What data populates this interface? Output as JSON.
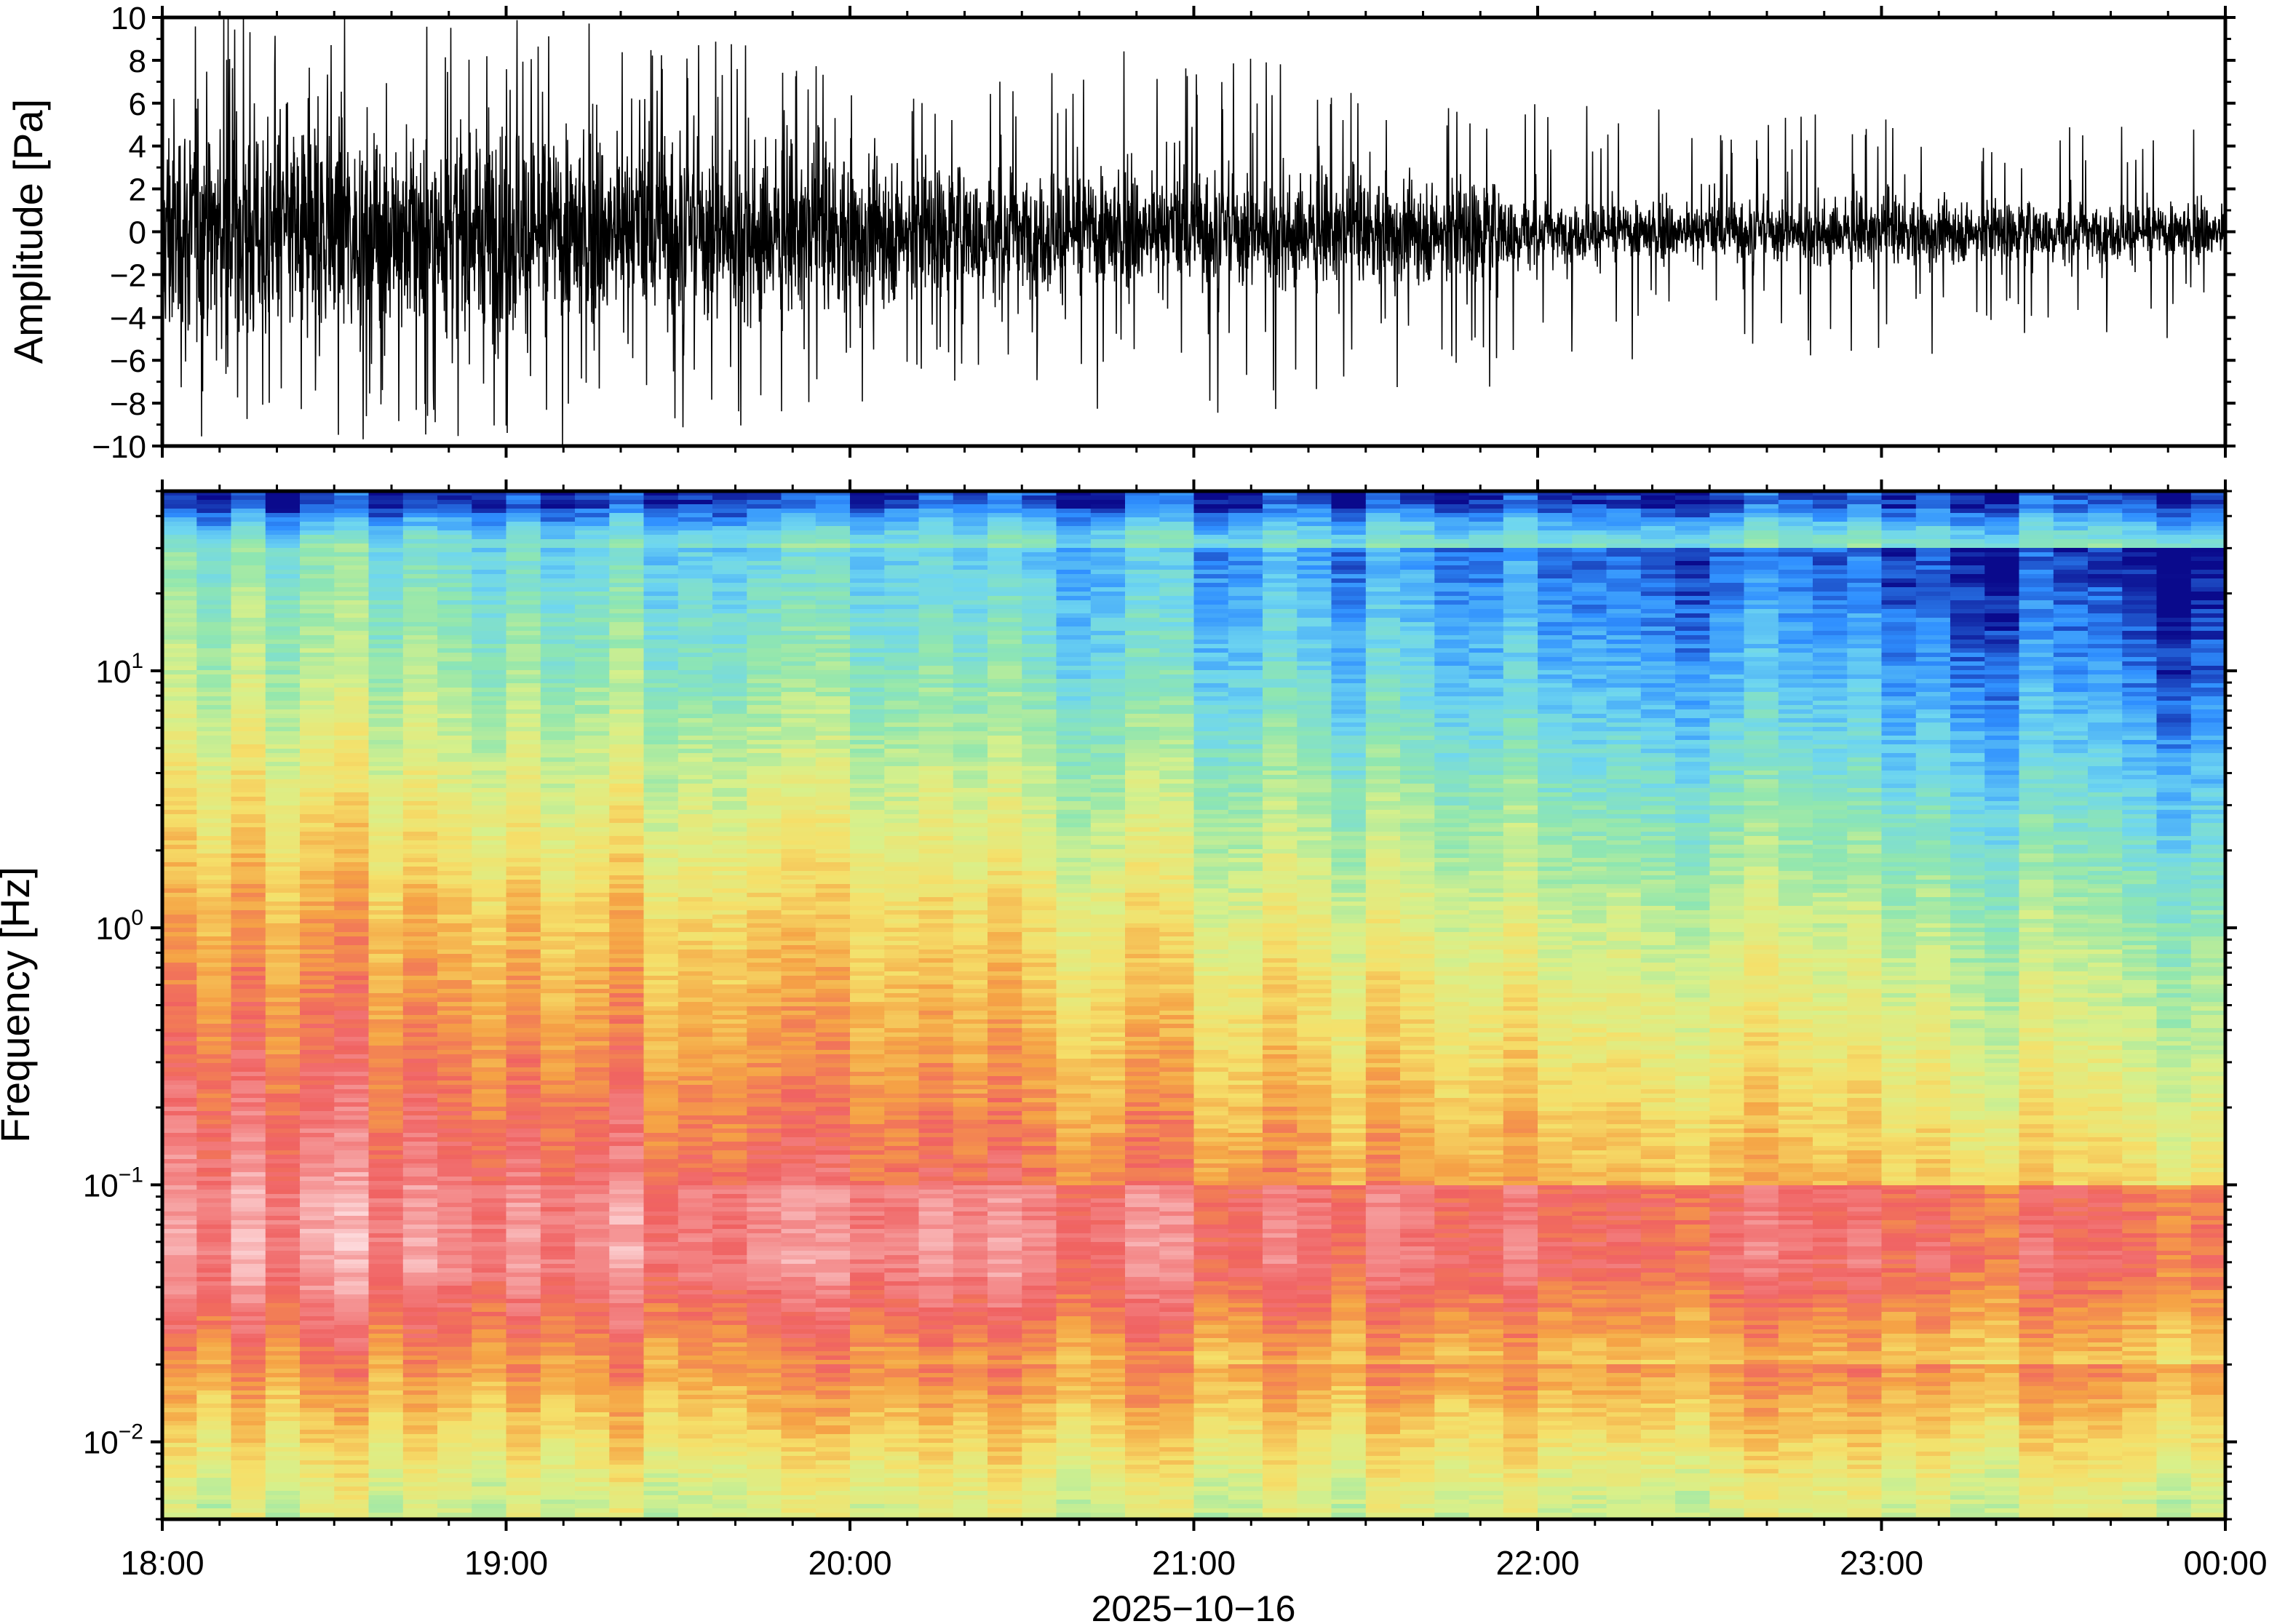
{
  "chart_data": [
    {
      "type": "line",
      "panel": "waveform",
      "ylabel": "Amplitude [Pa]",
      "ylim": [
        -10,
        10
      ],
      "yticks": [
        10,
        8,
        6,
        4,
        2,
        0,
        -2,
        -4,
        -6,
        -8,
        -10
      ],
      "ytick_labels": [
        "10",
        "8",
        "6",
        "4",
        "2",
        "0",
        "−2",
        "−4",
        "−6",
        "−8",
        "−10"
      ],
      "xlim": [
        "18:00",
        "00:00"
      ],
      "series": [
        {
          "color": "#000000",
          "envelope": {
            "x_hours": [
              0.0,
              0.5,
              1.0,
              1.5,
              2.0,
              2.5,
              3.0,
              3.5,
              3.85,
              4.0,
              4.5,
              5.0,
              5.5,
              6.0
            ],
            "typical_amplitude_pa": [
              7.5,
              6.0,
              6.2,
              5.5,
              4.5,
              3.8,
              3.4,
              2.9,
              3.2,
              1.8,
              1.7,
              1.9,
              1.8,
              1.6
            ],
            "peak_amplitude_pa": [
              10,
              10,
              10,
              10,
              8,
              7,
              10,
              7,
              8,
              6,
              6,
              6,
              5,
              5
            ]
          }
        }
      ]
    },
    {
      "type": "heatmap",
      "panel": "spectrogram",
      "ylabel": "Frequency [Hz]",
      "yscale": "log",
      "ylim": [
        0.005,
        50
      ],
      "yticks": [
        10,
        1,
        0.1,
        0.01
      ],
      "ytick_labels": [
        {
          "base": "10",
          "exp": "1"
        },
        {
          "base": "10",
          "exp": "0"
        },
        {
          "base": "10",
          "exp": "−1"
        },
        {
          "base": "10",
          "exp": "−2"
        }
      ],
      "xlabel": "2025−10−16",
      "xticks": [
        "18:00",
        "19:00",
        "20:00",
        "21:00",
        "22:00",
        "23:00",
        "00:00"
      ],
      "colormap": [
        "#0a0a8c",
        "#2f8fff",
        "#6ed6f0",
        "#8fe6b0",
        "#d8f08a",
        "#f5e06a",
        "#f5a345",
        "#f06262",
        "#f59a9a",
        "#ffe8ea"
      ],
      "energy_bands": [
        {
          "freq_hz": 45,
          "level": 0.05
        },
        {
          "freq_hz": 30,
          "level": 0.32
        },
        {
          "freq_hz": 10,
          "level": 0.42
        },
        {
          "freq_hz": 3,
          "level": 0.56
        },
        {
          "freq_hz": 1,
          "level": 0.68
        },
        {
          "freq_hz": 0.3,
          "level": 0.78
        },
        {
          "freq_hz": 0.1,
          "level": 0.88
        },
        {
          "freq_hz": 0.05,
          "level": 0.9
        },
        {
          "freq_hz": 0.025,
          "level": 0.76
        },
        {
          "freq_hz": 0.015,
          "level": 0.64
        },
        {
          "freq_hz": 0.006,
          "level": 0.46
        }
      ]
    }
  ]
}
